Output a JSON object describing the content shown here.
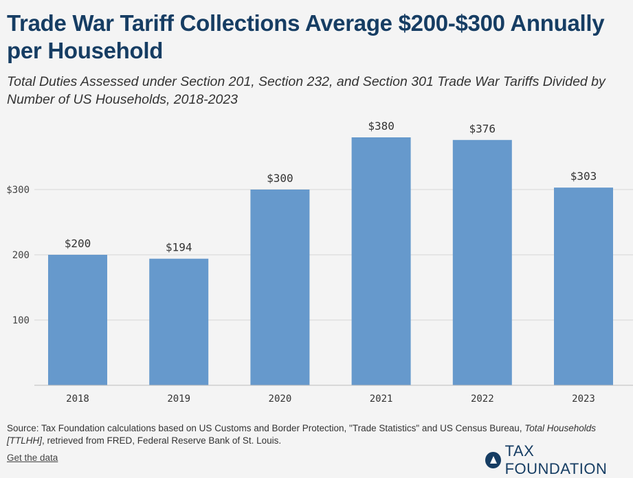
{
  "title": "Trade War Tariff Collections Average $200-$300 Annually per Household",
  "subtitle": "Total Duties Assessed under Section 201, Section 232, and Section 301 Trade War Tariffs Divided by Number of US Households, 2018-2023",
  "source": {
    "prefix": "Source: Tax Foundation calculations based on US Customs and Border Protection, \"Trade Statistics\" and US Census Bureau, ",
    "italic": "Total Households [TTLHH]",
    "suffix": ", retrieved from FRED, Federal Reserve Bank of St. Louis."
  },
  "get_data": "Get the data",
  "brand": "TAX FOUNDATION",
  "colors": {
    "bar": "#6699cc",
    "title": "#163d63",
    "grid": "#d6d6d6"
  },
  "chart_data": {
    "type": "bar",
    "categories": [
      "2018",
      "2019",
      "2020",
      "2021",
      "2022",
      "2023"
    ],
    "values": [
      200,
      194,
      300,
      380,
      376,
      303
    ],
    "data_labels": [
      "$200",
      "$194",
      "$300",
      "$380",
      "$376",
      "$303"
    ],
    "ylim": [
      0,
      400
    ],
    "yticks": [
      100,
      200,
      300
    ],
    "ytick_labels": [
      "100",
      "200",
      "$300"
    ],
    "xlabel": "",
    "ylabel": "",
    "grid": true
  }
}
